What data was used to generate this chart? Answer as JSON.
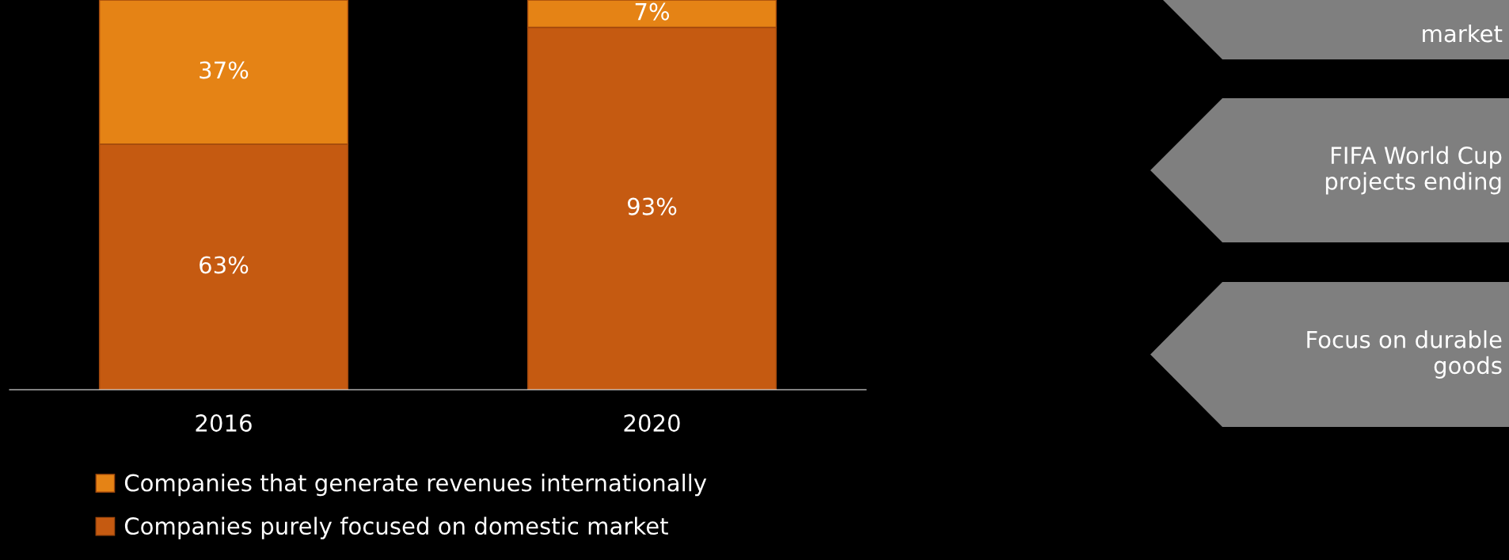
{
  "chart_data": {
    "type": "bar",
    "stacked": true,
    "categories": [
      "2016",
      "2020"
    ],
    "series": [
      {
        "name": "Companies purely focused on domestic market",
        "color": "#c55a11",
        "values": [
          63,
          93
        ],
        "value_labels": [
          "63%",
          "93%"
        ]
      },
      {
        "name": "Companies that generate revenues internationally",
        "color": "#e58315",
        "values": [
          37,
          7
        ],
        "value_labels": [
          "37%",
          "7%"
        ]
      }
    ],
    "legend": "bottom",
    "annotations": [
      "market",
      "FIFA World Cup\nprojects ending",
      "Focus on durable\ngoods"
    ]
  }
}
